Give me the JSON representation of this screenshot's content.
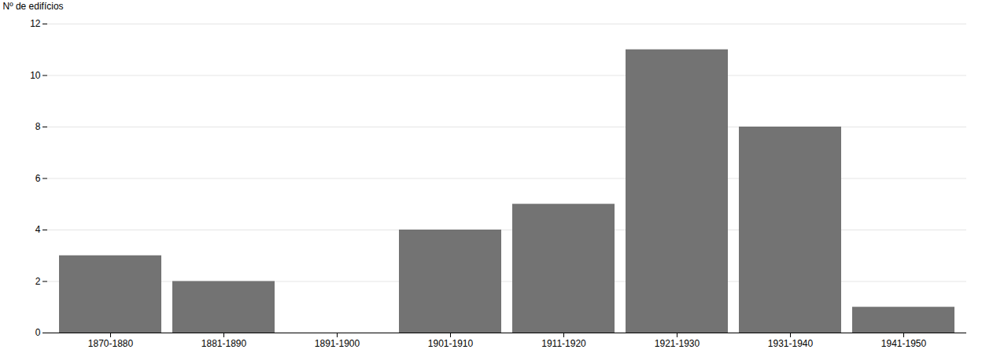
{
  "chart_data": {
    "type": "bar",
    "categories": [
      "1870-1880",
      "1881-1890",
      "1891-1900",
      "1901-1910",
      "1911-1920",
      "1921-1930",
      "1931-1940",
      "1941-1950"
    ],
    "values": [
      3,
      2,
      0,
      4,
      5,
      11,
      8,
      1
    ],
    "color": "#737373",
    "ylabel": "Nº de edifícios",
    "ylim": [
      0,
      12
    ],
    "yticks": [
      0,
      2,
      4,
      6,
      8,
      10,
      12
    ],
    "grid": true
  }
}
